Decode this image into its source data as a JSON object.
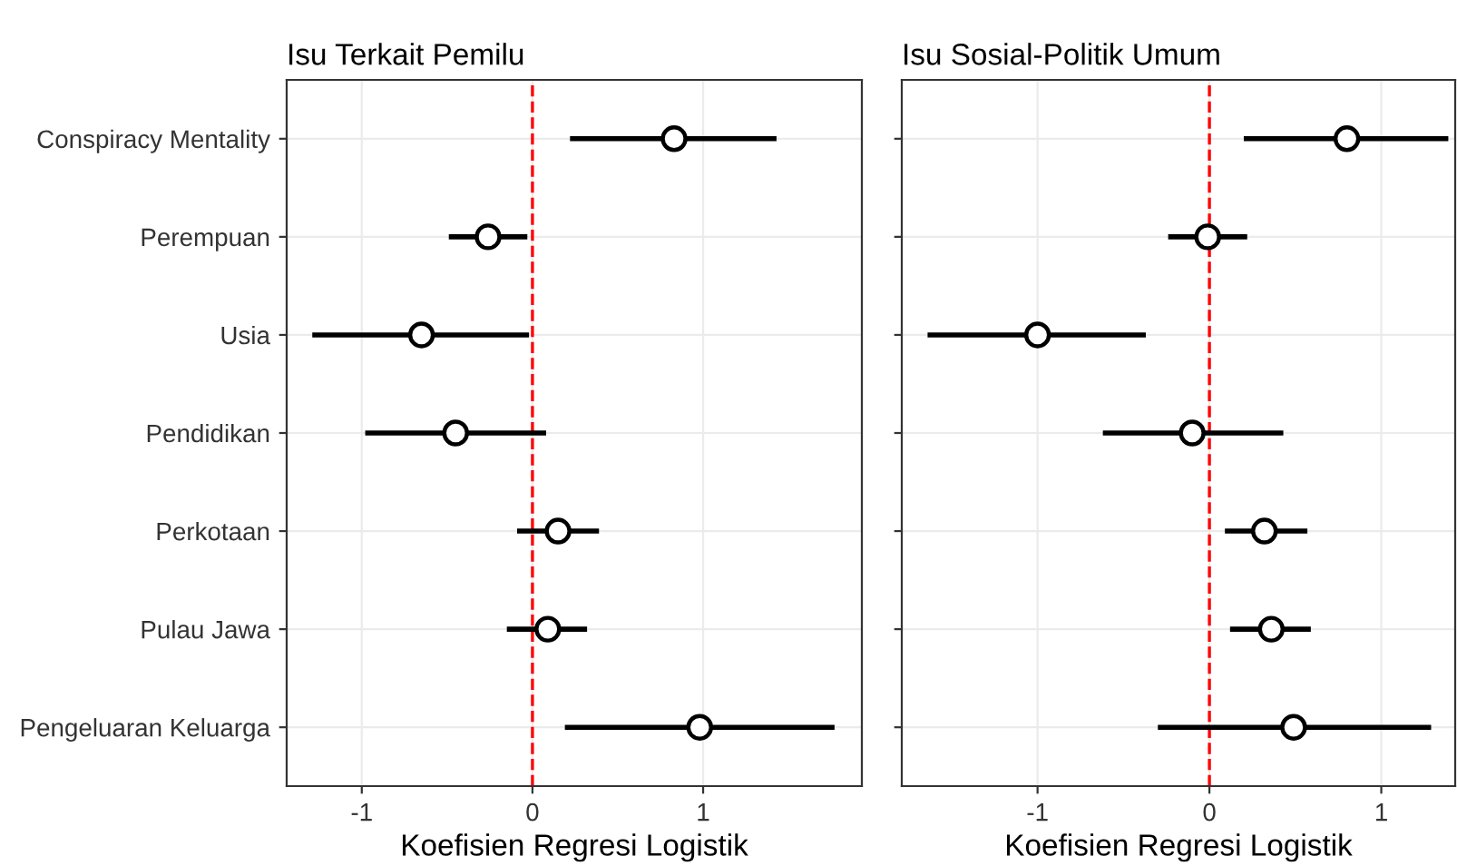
{
  "chart_data": [
    {
      "type": "scatter",
      "orientation": "horizontal",
      "title": "Isu Terkait Pemilu",
      "xlabel": "Koefisien Regresi Logistik",
      "categories": [
        "Conspiracy Mentality",
        "Perempuan",
        "Usia",
        "Pendidikan",
        "Perkotaan",
        "Pulau Jawa",
        "Pengeluaran Keluarga"
      ],
      "values": [
        0.83,
        -0.26,
        -0.65,
        -0.45,
        0.15,
        0.09,
        0.98
      ],
      "errors": [
        [
          0.22,
          1.43
        ],
        [
          -0.49,
          -0.03
        ],
        [
          -1.29,
          -0.02
        ],
        [
          -0.98,
          0.08
        ],
        [
          -0.09,
          0.39
        ],
        [
          -0.15,
          0.32
        ],
        [
          0.19,
          1.77
        ]
      ],
      "color": "#000000",
      "marker": "circle",
      "xlim": [
        -1.44,
        1.93
      ],
      "xticks": [
        -1,
        0,
        1
      ],
      "grid": true,
      "ref_lines": [
        {
          "axis": "x",
          "value": 0,
          "color": "#ff0000",
          "line_style": "dashed"
        }
      ]
    },
    {
      "type": "scatter",
      "orientation": "horizontal",
      "title": "Isu Sosial-Politik Umum",
      "xlabel": "Koefisien Regresi Logistik",
      "categories": [
        null,
        null,
        null,
        null,
        null,
        null,
        null
      ],
      "values": [
        0.8,
        -0.01,
        -1.0,
        -0.1,
        0.32,
        0.36,
        0.49
      ],
      "errors": [
        [
          0.2,
          1.39
        ],
        [
          -0.24,
          0.22
        ],
        [
          -1.64,
          -0.37
        ],
        [
          -0.62,
          0.43
        ],
        [
          0.09,
          0.57
        ],
        [
          0.12,
          0.59
        ],
        [
          -0.3,
          1.29
        ]
      ],
      "color": "#000000",
      "marker": "circle",
      "xlim": [
        -1.79,
        1.43
      ],
      "xticks": [
        -1,
        0,
        1
      ],
      "grid": true,
      "tick_labels": "x",
      "ref_lines": [
        {
          "axis": "x",
          "value": 0,
          "color": "#ff0000",
          "line_style": "dashed"
        }
      ]
    }
  ]
}
